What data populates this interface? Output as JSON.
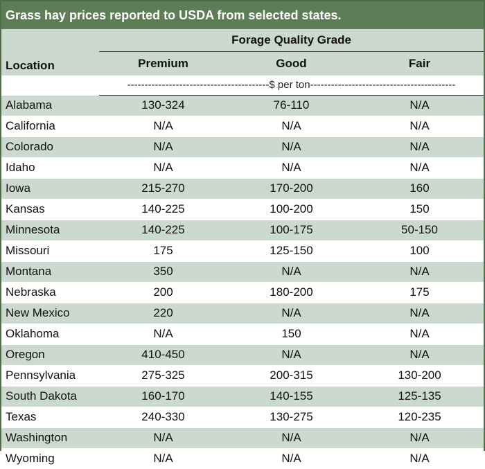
{
  "title": "Grass hay prices reported to USDA from selected states.",
  "header": {
    "location": "Location",
    "group": "Forage Quality Grade",
    "premium": "Premium",
    "good": "Good",
    "fair": "Fair",
    "units": "-----------------------------------------$ per ton------------------------------------------"
  },
  "rows": [
    {
      "location": "Alabama",
      "premium": "130-324",
      "good": "76-110",
      "fair": "N/A"
    },
    {
      "location": "California",
      "premium": "N/A",
      "good": "N/A",
      "fair": "N/A"
    },
    {
      "location": "Colorado",
      "premium": "N/A",
      "good": "N/A",
      "fair": "N/A"
    },
    {
      "location": "Idaho",
      "premium": "N/A",
      "good": "N/A",
      "fair": "N/A"
    },
    {
      "location": "Iowa",
      "premium": "215-270",
      "good": "170-200",
      "fair": "160"
    },
    {
      "location": "Kansas",
      "premium": "140-225",
      "good": "100-200",
      "fair": "150"
    },
    {
      "location": "Minnesota",
      "premium": "140-225",
      "good": "100-175",
      "fair": "50-150"
    },
    {
      "location": "Missouri",
      "premium": "175",
      "good": "125-150",
      "fair": "100"
    },
    {
      "location": "Montana",
      "premium": "350",
      "good": "N/A",
      "fair": "N/A"
    },
    {
      "location": "Nebraska",
      "premium": "200",
      "good": "180-200",
      "fair": "175"
    },
    {
      "location": "New Mexico",
      "premium": "220",
      "good": "N/A",
      "fair": "N/A"
    },
    {
      "location": "Oklahoma",
      "premium": "N/A",
      "good": "150",
      "fair": "N/A"
    },
    {
      "location": "Oregon",
      "premium": "410-450",
      "good": "N/A",
      "fair": "N/A"
    },
    {
      "location": "Pennsylvania",
      "premium": "275-325",
      "good": "200-315",
      "fair": "130-200"
    },
    {
      "location": "South Dakota",
      "premium": "160-170",
      "good": "140-155",
      "fair": "125-135"
    },
    {
      "location": "Texas",
      "premium": "240-330",
      "good": "130-275",
      "fair": "120-235"
    },
    {
      "location": "Washington",
      "premium": "N/A",
      "good": "N/A",
      "fair": "N/A"
    },
    {
      "location": "Wyoming",
      "premium": "N/A",
      "good": "N/A",
      "fair": "N/A"
    }
  ]
}
